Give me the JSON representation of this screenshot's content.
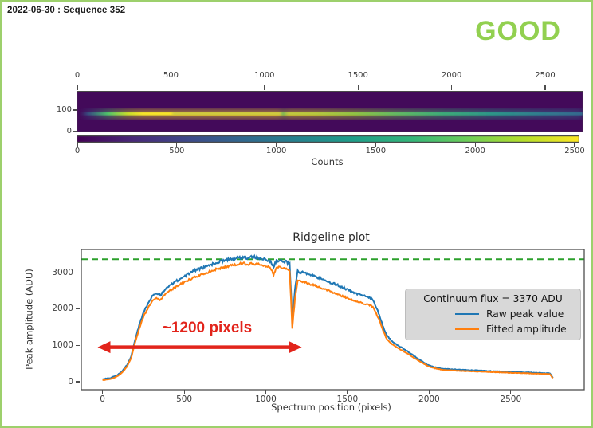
{
  "page": {
    "title": "2022-06-30 : Sequence 352",
    "status": "GOOD",
    "status_color": "#92d050",
    "frame_border_color": "#9dd06c"
  },
  "chart_data": [
    {
      "id": "spectrum_heatmap",
      "type": "heatmap",
      "description": "2D raw spectrum, viridis colormap, bright continuum trace near detector row 90 with a small gap near x=1100, fading to teal toward x=2700",
      "x_range": [
        0,
        2700
      ],
      "x_ticks_top": [
        0,
        500,
        1000,
        1500,
        2000,
        2500
      ],
      "row_range": [
        185,
        0
      ],
      "y_ticks": [
        100,
        0
      ],
      "colorbar": {
        "label": "Counts",
        "range": [
          0,
          2520
        ],
        "ticks": [
          0,
          500,
          1000,
          1500,
          2000,
          2500
        ],
        "colormap": "viridis"
      }
    },
    {
      "id": "ridgeline",
      "type": "line",
      "title": "Ridgeline plot",
      "xlabel": "Spectrum position (pixels)",
      "ylabel": "Peak amplitude (ADU)",
      "xlim": [
        -130,
        2950
      ],
      "ylim": [
        -220,
        3640
      ],
      "xticks": [
        0,
        500,
        1000,
        1500,
        2000,
        2500
      ],
      "yticks": [
        0,
        1000,
        2000,
        3000
      ],
      "grid": false,
      "legend_position": "right",
      "continuum_line": {
        "value": 3370,
        "color": "#2ca02c",
        "style": "dashed"
      },
      "legend": {
        "title": "Continuum flux = 3370 ADU",
        "entries": [
          {
            "label": "Raw peak value",
            "color": "#1f77b4"
          },
          {
            "label": "Fitted amplitude",
            "color": "#ff7f0e"
          }
        ]
      },
      "annotation": {
        "text": "~1200 pixels",
        "color": "#e2241b",
        "arrow_x": [
          -30,
          1220
        ],
        "arrow_y": 950
      },
      "series_names": [
        "Raw peak value",
        "Fitted amplitude"
      ],
      "noise_amplitude": {
        "raw": 40,
        "fitted": 32
      },
      "points": [
        [
          0,
          70,
          40
        ],
        [
          50,
          105,
          75
        ],
        [
          90,
          185,
          150
        ],
        [
          120,
          285,
          250
        ],
        [
          150,
          460,
          420
        ],
        [
          175,
          690,
          650
        ],
        [
          200,
          1160,
          1090
        ],
        [
          225,
          1560,
          1470
        ],
        [
          250,
          1900,
          1790
        ],
        [
          275,
          2120,
          1990
        ],
        [
          300,
          2330,
          2190
        ],
        [
          330,
          2450,
          2300
        ],
        [
          355,
          2380,
          2250
        ],
        [
          385,
          2560,
          2420
        ],
        [
          420,
          2680,
          2530
        ],
        [
          460,
          2790,
          2640
        ],
        [
          500,
          2900,
          2740
        ],
        [
          540,
          3000,
          2830
        ],
        [
          580,
          3090,
          2910
        ],
        [
          620,
          3150,
          2970
        ],
        [
          660,
          3220,
          3040
        ],
        [
          700,
          3280,
          3100
        ],
        [
          740,
          3330,
          3150
        ],
        [
          780,
          3370,
          3190
        ],
        [
          820,
          3400,
          3230
        ],
        [
          860,
          3430,
          3260
        ],
        [
          890,
          3410,
          3230
        ],
        [
          915,
          3435,
          3255
        ],
        [
          945,
          3415,
          3235
        ],
        [
          975,
          3395,
          3215
        ],
        [
          1005,
          3370,
          3185
        ],
        [
          1030,
          3300,
          3110
        ],
        [
          1048,
          3170,
          2960
        ],
        [
          1065,
          3330,
          3150
        ],
        [
          1095,
          3320,
          3140
        ],
        [
          1125,
          3300,
          3110
        ],
        [
          1146,
          3250,
          3050
        ],
        [
          1162,
          1720,
          1460
        ],
        [
          1178,
          2520,
          2260
        ],
        [
          1195,
          3040,
          2790
        ],
        [
          1230,
          3000,
          2750
        ],
        [
          1270,
          2950,
          2690
        ],
        [
          1310,
          2890,
          2630
        ],
        [
          1355,
          2800,
          2550
        ],
        [
          1400,
          2730,
          2480
        ],
        [
          1450,
          2640,
          2390
        ],
        [
          1500,
          2540,
          2300
        ],
        [
          1550,
          2430,
          2210
        ],
        [
          1600,
          2370,
          2150
        ],
        [
          1635,
          2320,
          2110
        ],
        [
          1655,
          2260,
          2060
        ],
        [
          1675,
          2060,
          1890
        ],
        [
          1695,
          1840,
          1700
        ],
        [
          1715,
          1560,
          1440
        ],
        [
          1740,
          1280,
          1180
        ],
        [
          1770,
          1120,
          1040
        ],
        [
          1800,
          1020,
          950
        ],
        [
          1835,
          930,
          860
        ],
        [
          1870,
          830,
          770
        ],
        [
          1910,
          700,
          650
        ],
        [
          1950,
          580,
          540
        ],
        [
          1990,
          470,
          435
        ],
        [
          2030,
          405,
          375
        ],
        [
          2080,
          360,
          330
        ],
        [
          2140,
          340,
          310
        ],
        [
          2220,
          325,
          295
        ],
        [
          2320,
          305,
          278
        ],
        [
          2420,
          285,
          260
        ],
        [
          2520,
          268,
          243
        ],
        [
          2620,
          252,
          228
        ],
        [
          2700,
          240,
          216
        ],
        [
          2740,
          232,
          208
        ],
        [
          2758,
          110,
          95
        ]
      ]
    }
  ]
}
